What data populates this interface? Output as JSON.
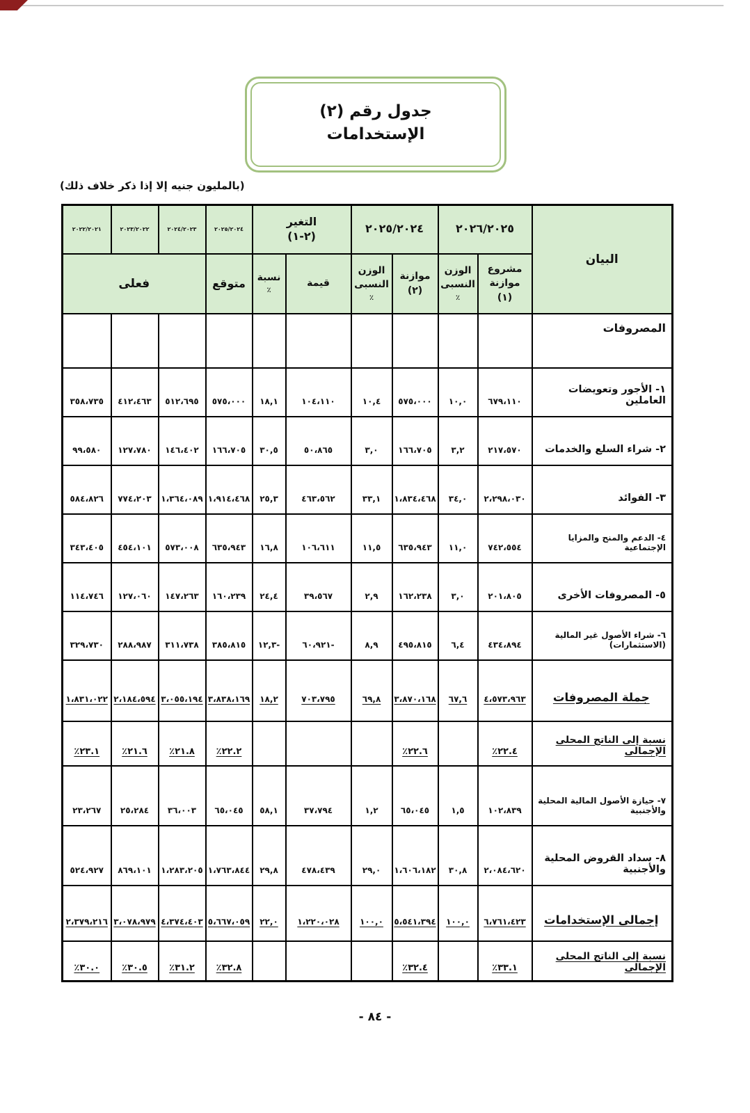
{
  "page": {
    "title_line1": "جدول رقم (٢)",
    "title_line2": "الإستخدامات",
    "unit_note": "(بالمليون جنيه إلا إذا ذكر خلاف ذلك)",
    "footer_page": "- ٨٤ -"
  },
  "colors": {
    "header_bg": "#d7ecd0",
    "total_green_bg": "#d9f3da",
    "ratio_yellow_bg": "#fcf8a0",
    "title_box_border": "#a2c17f",
    "table_border": "#000000"
  },
  "table": {
    "header": {
      "statement": "البيان",
      "groups": [
        {
          "title_lines": [
            "٢٠٢٦/٢٠٢٥"
          ]
        },
        {
          "title_lines": [
            "٢٠٢٥/٢٠٢٤"
          ]
        },
        {
          "title_lines": [
            "التغير",
            "(٢-١)"
          ]
        }
      ],
      "subcols": [
        [
          "مشروع",
          "موازنة",
          "(١)"
        ],
        [
          "الوزن",
          "النسبى",
          "٪"
        ],
        [
          "موازنة",
          "(٢)"
        ],
        [
          "الوزن",
          "النسبى",
          "٪"
        ],
        [
          "قيمة"
        ],
        [
          "نسبة",
          "٪"
        ]
      ],
      "expected": {
        "year": "٢٠٢٥/٢٠٢٤",
        "label": "متوقع"
      },
      "actual": {
        "label": "فعلى",
        "years": [
          "٢٠٢٤/٢٠٢٣",
          "٢٠٢٣/٢٠٢٢",
          "٢٠٢٢/٢٠٢١"
        ]
      }
    },
    "rows": [
      {
        "kind": "section",
        "label": "المصروفات",
        "values": null
      },
      {
        "kind": "item",
        "label": "١- الأجور وتعويضات العاملين",
        "values": [
          "٦٧٩،١١٠",
          "١٠,٠",
          "٥٧٥،٠٠٠",
          "١٠,٤",
          "١٠٤،١١٠",
          "١٨,١",
          "٥٧٥،٠٠٠",
          "٥١٢،٦٩٥",
          "٤١٢،٤٦٣",
          "٣٥٨،٧٣٥"
        ]
      },
      {
        "kind": "item",
        "label": "٢- شراء السلع والخدمات",
        "values": [
          "٢١٧،٥٧٠",
          "٣,٢",
          "١٦٦،٧٠٥",
          "٣,٠",
          "٥٠،٨٦٥",
          "٣٠,٥",
          "١٦٦،٧٠٥",
          "١٤٦،٤٠٢",
          "١٢٧،٧٨٠",
          "٩٩،٥٨٠"
        ]
      },
      {
        "kind": "item",
        "label": "٣- الفوائد",
        "values": [
          "٢،٢٩٨،٠٣٠",
          "٣٤,٠",
          "١،٨٣٤،٤٦٨",
          "٣٣,١",
          "٤٦٣،٥٦٢",
          "٢٥,٣",
          "١،٩١٤،٤٦٨",
          "١،٣٦٤،٠٨٩",
          "٧٧٤،٢٠٣",
          "٥٨٤،٨٢٦"
        ]
      },
      {
        "kind": "item",
        "small_label": true,
        "label": "٤- الدعم والمنح والمزايا الإجتماعية",
        "values": [
          "٧٤٢،٥٥٤",
          "١١,٠",
          "٦٣٥،٩٤٣",
          "١١,٥",
          "١٠٦،٦١١",
          "١٦,٨",
          "٦٣٥،٩٤٣",
          "٥٧٣،٠٠٨",
          "٤٥٤،١٠١",
          "٣٤٣،٤٠٥"
        ]
      },
      {
        "kind": "item",
        "label": "٥- المصروفات الأخرى",
        "values": [
          "٢٠١،٨٠٥",
          "٣,٠",
          "١٦٢،٢٣٨",
          "٢,٩",
          "٣٩،٥٦٧",
          "٢٤,٤",
          "١٦٠،٢٣٩",
          "١٤٧،٢٦٣",
          "١٢٧،٠٦٠",
          "١١٤،٧٤٦"
        ]
      },
      {
        "kind": "item",
        "small_label": true,
        "label": "٦- شراء الأصول غير المالية (الاستثمارات)",
        "values": [
          "٤٣٤،٨٩٤",
          "٦,٤",
          "٤٩٥،٨١٥",
          "٨,٩",
          "٦٠،٩٢١-",
          "١٢,٣-",
          "٣٨٥،٨١٥",
          "٣١١،٧٣٨",
          "٢٨٨،٩٨٧",
          "٣٢٩،٧٣٠"
        ]
      },
      {
        "kind": "total",
        "bg": "green",
        "label": "جملة المصروفات",
        "values": [
          "٤،٥٧٣،٩٦٣",
          "٦٧,٦",
          "٣،٨٧٠،١٦٨",
          "٦٩,٨",
          "٧٠٣،٧٩٥",
          "١٨,٢",
          "٣،٨٣٨،١٦٩",
          "٣،٠٥٥،١٩٤",
          "٢،١٨٤،٥٩٤",
          "١،٨٣١،٠٢٢"
        ]
      },
      {
        "kind": "ratio",
        "bg": "green",
        "label": "نسبة إلى الناتج المحلى الإجمالى",
        "values": [
          "٪٢٢.٤",
          "",
          "٪٢٢.٦",
          "",
          "",
          "",
          "٪٢٢.٢",
          "٪٢١.٨",
          "٪٢١.٦",
          "٪٢٣.١"
        ]
      },
      {
        "kind": "item",
        "small_label": true,
        "label": "٧- حيازة الأصول المالية المحلية والأجنبية",
        "values": [
          "١٠٢،٨٣٩",
          "١,٥",
          "٦٥،٠٤٥",
          "١,٢",
          "٣٧،٧٩٤",
          "٥٨,١",
          "٦٥،٠٤٥",
          "٣٦،٠٠٣",
          "٢٥،٢٨٤",
          "٢٣،٢٦٧"
        ]
      },
      {
        "kind": "item",
        "label": "٨- سداد القروض المحلية والأجنبية",
        "values": [
          "٢،٠٨٤،٦٢٠",
          "٣٠,٨",
          "١،٦٠٦،١٨٢",
          "٢٩,٠",
          "٤٧٨،٤٣٩",
          "٢٩,٨",
          "١،٧٦٣،٨٤٤",
          "١،٢٨٣،٢٠٥",
          "٨٦٩،١٠١",
          "٥٢٤،٩٢٧"
        ]
      },
      {
        "kind": "total",
        "bg": "green",
        "label": "إجمالى الإستخدامات",
        "values": [
          "٦،٧٦١،٤٢٣",
          "١٠٠,٠",
          "٥،٥٤١،٣٩٤",
          "١٠٠,٠",
          "١،٢٢٠،٠٢٨",
          "٢٢,٠",
          "٥،٦٦٧،٠٥٩",
          "٤،٣٧٤،٤٠٣",
          "٣،٠٧٨،٩٧٩",
          "٢،٣٧٩،٢١٦"
        ]
      },
      {
        "kind": "ratio",
        "bg": "yellow",
        "label": "نسبة إلى الناتج المحلى الإجمالى",
        "values": [
          "٪٣٣.١",
          "",
          "٪٣٢.٤",
          "",
          "",
          "",
          "٪٣٢.٨",
          "٪٣١.٢",
          "٪٣٠.٥",
          "٪٣٠.٠"
        ]
      }
    ]
  }
}
